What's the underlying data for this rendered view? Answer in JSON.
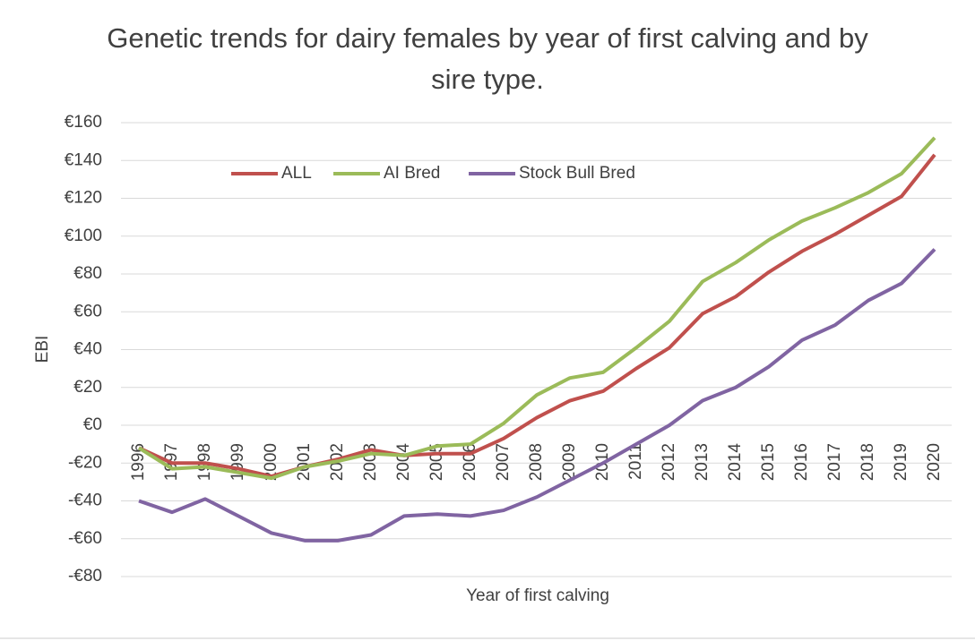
{
  "chart_data": {
    "type": "line",
    "title": "Genetic trends for dairy females by year of first calving and by sire type.",
    "x_label": "Year of first calving",
    "y_label": "EBI",
    "categories": [
      "1996",
      "1997",
      "1998",
      "1999",
      "2000",
      "2001",
      "2002",
      "2003",
      "2004",
      "2005",
      "2006",
      "2007",
      "2008",
      "2009",
      "2010",
      "2011",
      "2012",
      "2013",
      "2014",
      "2015",
      "2016",
      "2017",
      "2018",
      "2019",
      "2020"
    ],
    "series": [
      {
        "name": "ALL",
        "color": "#c0504d",
        "values": [
          -12,
          -20,
          -20,
          -23,
          -27,
          -22,
          -18,
          -13,
          -16,
          -15,
          -15,
          -7,
          4,
          13,
          18,
          30,
          41,
          59,
          68,
          81,
          92,
          101,
          111,
          121,
          143
        ]
      },
      {
        "name": "AI Bred",
        "color": "#9bbb59",
        "values": [
          -12,
          -23,
          -22,
          -25,
          -28,
          -22,
          -19,
          -15,
          -16,
          -11,
          -10,
          1,
          16,
          25,
          28,
          41,
          55,
          76,
          86,
          98,
          108,
          115,
          123,
          133,
          152
        ]
      },
      {
        "name": "Stock Bull Bred",
        "color": "#8064a2",
        "values": [
          -40,
          -46,
          -39,
          -48,
          -57,
          -61,
          -61,
          -58,
          -48,
          -47,
          -48,
          -45,
          -38,
          -29,
          -20,
          -10,
          0,
          13,
          20,
          31,
          45,
          53,
          66,
          75,
          93
        ]
      }
    ],
    "ylim": [
      -80,
      160
    ],
    "yticks": [
      {
        "value": -80,
        "label": "-€80"
      },
      {
        "value": -60,
        "label": "-€60"
      },
      {
        "value": -40,
        "label": "-€40"
      },
      {
        "value": -20,
        "label": "-€20"
      },
      {
        "value": 0,
        "label": "€0"
      },
      {
        "value": 20,
        "label": "€20"
      },
      {
        "value": 40,
        "label": "€40"
      },
      {
        "value": 60,
        "label": "€60"
      },
      {
        "value": 80,
        "label": "€80"
      },
      {
        "value": 100,
        "label": "€100"
      },
      {
        "value": 120,
        "label": "€120"
      },
      {
        "value": 140,
        "label": "€140"
      },
      {
        "value": 160,
        "label": "€160"
      }
    ],
    "grid": true,
    "legend": "top"
  }
}
